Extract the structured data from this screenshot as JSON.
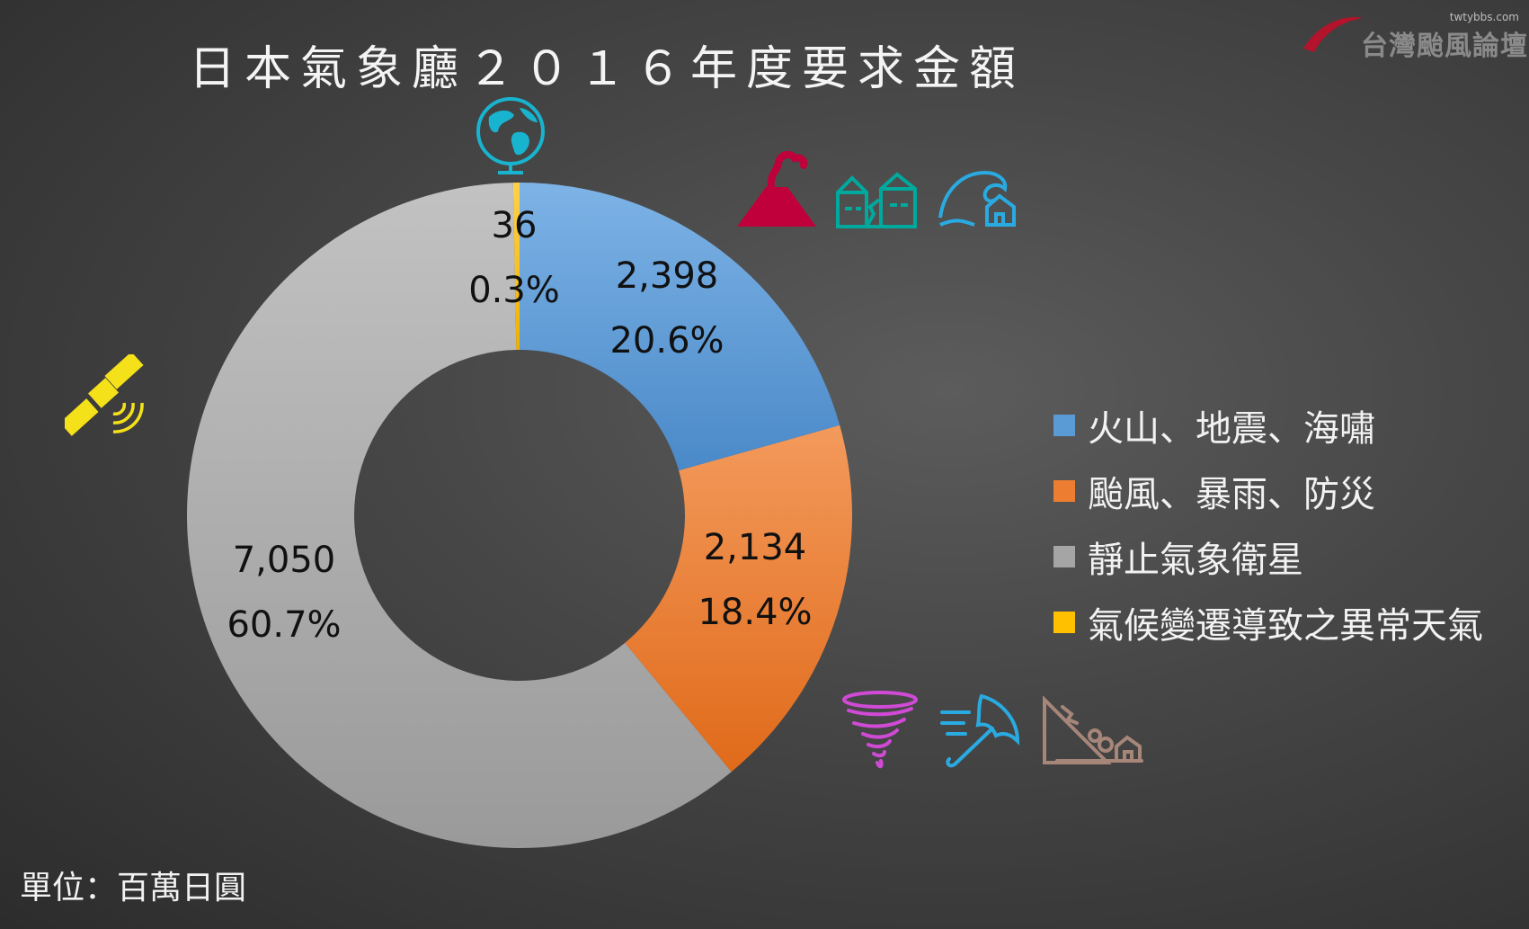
{
  "title": "日本氣象廳２０１６年度要求金額",
  "logo": {
    "site": "twtybbs.com",
    "name": "台灣颱風論壇"
  },
  "unit": "單位：百萬日圓",
  "icons": [
    "globe-icon",
    "volcano-icon",
    "earthquake-icon",
    "tsunami-icon",
    "satellite-icon",
    "typhoon-icon",
    "heavy-rain-icon",
    "landslide-icon"
  ],
  "colors": {
    "blue": "#5a9bd5",
    "orange": "#ed7d31",
    "gray": "#a5a5a5",
    "gold": "#ffc000",
    "volcano": "#c0003a",
    "teal": "#00a99d",
    "cyan": "#29abe2",
    "satellite": "#f5e11a",
    "typhoon": "#d04ad6",
    "landslide": "#a7867a"
  },
  "chart_data": {
    "type": "donut",
    "title": "日本氣象廳２０１６年度要求金額",
    "unit": "百萬日圓",
    "legend_position": "right",
    "series": [
      {
        "name": "火山、地震、海嘯",
        "value": 2398,
        "value_label": "2,398",
        "percent_label": "20.6%",
        "color": "#5a9bd5"
      },
      {
        "name": "颱風、暴雨、防災",
        "value": 2134,
        "value_label": "2,134",
        "percent_label": "18.4%",
        "color": "#ed7d31"
      },
      {
        "name": "靜止氣象衛星",
        "value": 7050,
        "value_label": "7,050",
        "percent_label": "60.7%",
        "color": "#a5a5a5"
      },
      {
        "name": "氣候變遷導致之異常天氣",
        "value": 36,
        "value_label": "36",
        "percent_label": "0.3%",
        "color": "#ffc000"
      }
    ]
  }
}
